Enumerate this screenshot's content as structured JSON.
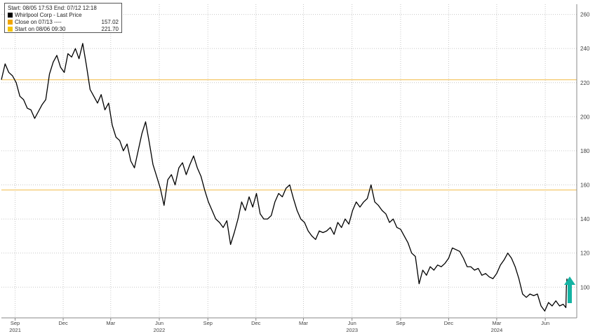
{
  "header": {
    "range_text": "Start: 08/05 17:53 End: 07/12 12:18"
  },
  "legend": [
    {
      "label": "Whirlpool Corp - Last Price",
      "value": "",
      "color": "#000000"
    },
    {
      "label": "Close on 07/13 ----",
      "value": "157.02",
      "color": "#f0a500"
    },
    {
      "label": "Start on 08/06 09:30",
      "value": "221.70",
      "color": "#f5c400"
    }
  ],
  "colors": {
    "price_line": "#000000",
    "ref_line": "#f5c86a",
    "grid": "#c8c8c8",
    "axis_text": "#444444",
    "arrow": "#15b3a3"
  },
  "icons": {
    "arrow": "up-arrow-icon"
  },
  "chart_data": {
    "type": "line",
    "title": "",
    "xlabel": "",
    "ylabel": "",
    "ylim": [
      82,
      266
    ],
    "xlim": [
      "2021-08-06",
      "2024-07-12"
    ],
    "y_ticks": [
      100,
      120,
      140,
      160,
      180,
      200,
      220,
      240,
      260
    ],
    "x_ticks": [
      {
        "date": "2021-09-01",
        "label": "Sep",
        "year": "2021"
      },
      {
        "date": "2021-12-01",
        "label": "Dec",
        "year": ""
      },
      {
        "date": "2022-03-01",
        "label": "Mar",
        "year": ""
      },
      {
        "date": "2022-06-01",
        "label": "Jun",
        "year": "2022"
      },
      {
        "date": "2022-09-01",
        "label": "Sep",
        "year": ""
      },
      {
        "date": "2022-12-01",
        "label": "Dec",
        "year": ""
      },
      {
        "date": "2023-03-01",
        "label": "Mar",
        "year": ""
      },
      {
        "date": "2023-06-01",
        "label": "Jun",
        "year": "2023"
      },
      {
        "date": "2023-09-01",
        "label": "Sep",
        "year": ""
      },
      {
        "date": "2023-12-01",
        "label": "Dec",
        "year": ""
      },
      {
        "date": "2024-03-01",
        "label": "Mar",
        "year": "2024"
      },
      {
        "date": "2024-06-01",
        "label": "Jun",
        "year": ""
      }
    ],
    "reference_lines": [
      {
        "label": "Start on 08/06 09:30",
        "value": 221.7
      },
      {
        "label": "Close on 07/13",
        "value": 157.02
      }
    ],
    "series": [
      {
        "name": "Whirlpool Corp - Last Price",
        "points": [
          [
            "2021-08-06",
            221.7
          ],
          [
            "2021-08-13",
            231
          ],
          [
            "2021-08-20",
            226
          ],
          [
            "2021-08-27",
            224
          ],
          [
            "2021-09-03",
            220
          ],
          [
            "2021-09-10",
            212
          ],
          [
            "2021-09-17",
            210
          ],
          [
            "2021-09-24",
            205
          ],
          [
            "2021-10-01",
            204
          ],
          [
            "2021-10-08",
            199
          ],
          [
            "2021-10-15",
            203
          ],
          [
            "2021-10-22",
            207
          ],
          [
            "2021-10-29",
            210
          ],
          [
            "2021-11-05",
            225
          ],
          [
            "2021-11-12",
            232
          ],
          [
            "2021-11-19",
            236
          ],
          [
            "2021-11-26",
            229
          ],
          [
            "2021-12-03",
            226
          ],
          [
            "2021-12-10",
            237
          ],
          [
            "2021-12-17",
            235
          ],
          [
            "2021-12-24",
            240
          ],
          [
            "2021-12-31",
            234
          ],
          [
            "2022-01-07",
            243
          ],
          [
            "2022-01-14",
            230
          ],
          [
            "2022-01-21",
            216
          ],
          [
            "2022-01-28",
            212
          ],
          [
            "2022-02-04",
            208
          ],
          [
            "2022-02-11",
            213
          ],
          [
            "2022-02-18",
            204
          ],
          [
            "2022-02-25",
            208
          ],
          [
            "2022-03-04",
            195
          ],
          [
            "2022-03-11",
            188
          ],
          [
            "2022-03-18",
            186
          ],
          [
            "2022-03-25",
            180
          ],
          [
            "2022-04-01",
            184
          ],
          [
            "2022-04-08",
            174
          ],
          [
            "2022-04-15",
            170
          ],
          [
            "2022-04-22",
            180
          ],
          [
            "2022-04-29",
            190
          ],
          [
            "2022-05-06",
            197
          ],
          [
            "2022-05-13",
            185
          ],
          [
            "2022-05-20",
            172
          ],
          [
            "2022-05-27",
            165
          ],
          [
            "2022-06-03",
            158
          ],
          [
            "2022-06-10",
            148
          ],
          [
            "2022-06-17",
            163
          ],
          [
            "2022-06-24",
            166
          ],
          [
            "2022-07-01",
            160
          ],
          [
            "2022-07-08",
            170
          ],
          [
            "2022-07-15",
            173
          ],
          [
            "2022-07-22",
            166
          ],
          [
            "2022-07-29",
            172
          ],
          [
            "2022-08-05",
            177
          ],
          [
            "2022-08-12",
            170
          ],
          [
            "2022-08-19",
            165
          ],
          [
            "2022-08-26",
            157
          ],
          [
            "2022-09-02",
            150
          ],
          [
            "2022-09-09",
            145
          ],
          [
            "2022-09-16",
            140
          ],
          [
            "2022-09-23",
            138
          ],
          [
            "2022-09-30",
            135
          ],
          [
            "2022-10-07",
            139
          ],
          [
            "2022-10-14",
            125
          ],
          [
            "2022-10-21",
            132
          ],
          [
            "2022-10-28",
            140
          ],
          [
            "2022-11-04",
            150
          ],
          [
            "2022-11-11",
            145
          ],
          [
            "2022-11-18",
            153
          ],
          [
            "2022-11-25",
            147
          ],
          [
            "2022-12-02",
            155
          ],
          [
            "2022-12-09",
            143
          ],
          [
            "2022-12-16",
            140
          ],
          [
            "2022-12-23",
            140
          ],
          [
            "2022-12-30",
            142
          ],
          [
            "2023-01-06",
            150
          ],
          [
            "2023-01-13",
            155
          ],
          [
            "2023-01-20",
            153
          ],
          [
            "2023-01-27",
            158
          ],
          [
            "2023-02-03",
            160
          ],
          [
            "2023-02-10",
            152
          ],
          [
            "2023-02-17",
            145
          ],
          [
            "2023-02-24",
            140
          ],
          [
            "2023-03-03",
            138
          ],
          [
            "2023-03-10",
            133
          ],
          [
            "2023-03-17",
            130
          ],
          [
            "2023-03-24",
            128
          ],
          [
            "2023-03-31",
            133
          ],
          [
            "2023-04-07",
            132
          ],
          [
            "2023-04-14",
            133
          ],
          [
            "2023-04-21",
            135
          ],
          [
            "2023-04-28",
            131
          ],
          [
            "2023-05-05",
            138
          ],
          [
            "2023-05-12",
            135
          ],
          [
            "2023-05-19",
            140
          ],
          [
            "2023-05-26",
            137
          ],
          [
            "2023-06-02",
            145
          ],
          [
            "2023-06-09",
            150
          ],
          [
            "2023-06-16",
            147
          ],
          [
            "2023-06-23",
            150
          ],
          [
            "2023-06-30",
            152
          ],
          [
            "2023-07-07",
            160
          ],
          [
            "2023-07-14",
            150
          ],
          [
            "2023-07-21",
            148
          ],
          [
            "2023-07-28",
            145
          ],
          [
            "2023-08-04",
            143
          ],
          [
            "2023-08-11",
            138
          ],
          [
            "2023-08-18",
            140
          ],
          [
            "2023-08-25",
            135
          ],
          [
            "2023-09-01",
            134
          ],
          [
            "2023-09-08",
            130
          ],
          [
            "2023-09-15",
            126
          ],
          [
            "2023-09-22",
            120
          ],
          [
            "2023-09-29",
            118
          ],
          [
            "2023-10-06",
            102
          ],
          [
            "2023-10-13",
            110
          ],
          [
            "2023-10-20",
            107
          ],
          [
            "2023-10-27",
            112
          ],
          [
            "2023-11-03",
            110
          ],
          [
            "2023-11-10",
            113
          ],
          [
            "2023-11-17",
            112
          ],
          [
            "2023-11-24",
            114
          ],
          [
            "2023-12-01",
            117
          ],
          [
            "2023-12-08",
            123
          ],
          [
            "2023-12-15",
            122
          ],
          [
            "2023-12-22",
            121
          ],
          [
            "2023-12-29",
            117
          ],
          [
            "2024-01-05",
            112
          ],
          [
            "2024-01-12",
            112
          ],
          [
            "2024-01-19",
            110
          ],
          [
            "2024-01-26",
            111
          ],
          [
            "2024-02-02",
            107
          ],
          [
            "2024-02-09",
            108
          ],
          [
            "2024-02-16",
            106
          ],
          [
            "2024-02-23",
            105
          ],
          [
            "2024-03-01",
            108
          ],
          [
            "2024-03-08",
            113
          ],
          [
            "2024-03-15",
            116
          ],
          [
            "2024-03-22",
            120
          ],
          [
            "2024-03-29",
            117
          ],
          [
            "2024-04-05",
            112
          ],
          [
            "2024-04-12",
            105
          ],
          [
            "2024-04-19",
            96
          ],
          [
            "2024-04-26",
            94
          ],
          [
            "2024-05-03",
            96
          ],
          [
            "2024-05-10",
            95
          ],
          [
            "2024-05-17",
            96
          ],
          [
            "2024-05-24",
            89
          ],
          [
            "2024-05-31",
            86
          ],
          [
            "2024-06-07",
            91
          ],
          [
            "2024-06-14",
            89
          ],
          [
            "2024-06-21",
            92
          ],
          [
            "2024-06-28",
            89
          ],
          [
            "2024-07-05",
            90
          ],
          [
            "2024-07-10",
            88
          ],
          [
            "2024-07-11",
            100
          ],
          [
            "2024-07-12",
            105
          ]
        ]
      }
    ]
  }
}
